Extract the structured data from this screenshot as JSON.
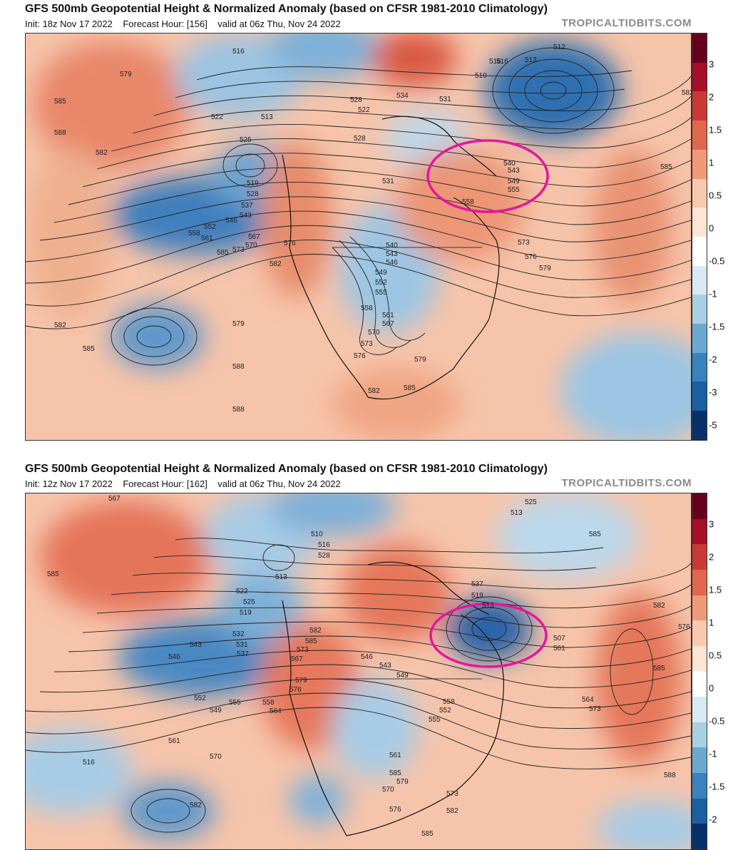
{
  "panels": [
    {
      "title": "GFS 500mb Geopotential Height & Normalized Anomaly (based on CFSR 1981-2010 Climatology)",
      "init": "Init: 18z Nov 17 2022",
      "forecast_hour": "Forecast Hour: [156]",
      "valid": "valid at 06z Thu, Nov 24 2022",
      "brand": "TROPICALTIDBITS.COM",
      "contour_labels": [
        "579",
        "585",
        "588",
        "582",
        "516",
        "513",
        "522",
        "525",
        "519",
        "528",
        "537",
        "543",
        "546",
        "552",
        "558",
        "561",
        "567",
        "570",
        "573",
        "576",
        "582",
        "585",
        "579",
        "582",
        "585",
        "588",
        "534",
        "531",
        "519",
        "516",
        "513",
        "528",
        "531",
        "540",
        "543",
        "546",
        "549",
        "552",
        "555",
        "558",
        "561",
        "567",
        "570",
        "573",
        "576",
        "579",
        "582",
        "585",
        "588",
        "540",
        "543",
        "549",
        "555",
        "558",
        "573",
        "576",
        "579",
        "585",
        "582",
        "512",
        "516",
        "522",
        "528"
      ],
      "highlight": "magenta-ellipse-over-eastern-canada"
    },
    {
      "title": "GFS 500mb Geopotential Height & Normalized Anomaly (based on CFSR 1981-2010 Climatology)",
      "init": "Init: 12z Nov 17 2022",
      "forecast_hour": "Forecast Hour: [162]",
      "valid": "valid at 06z Thu, Nov 24 2022",
      "brand": "TROPICALTIDBITS.COM",
      "contour_labels": [
        "567",
        "585",
        "522",
        "525",
        "519",
        "513",
        "510",
        "516",
        "528",
        "532",
        "531",
        "537",
        "543",
        "546",
        "549",
        "552",
        "555",
        "558",
        "564",
        "561",
        "570",
        "576",
        "579",
        "582",
        "585",
        "573",
        "567",
        "543",
        "546",
        "549",
        "537",
        "519",
        "513",
        "507",
        "561",
        "564",
        "573",
        "576",
        "585",
        "588",
        "582",
        "585",
        "525",
        "513",
        "522",
        "516",
        "582",
        "585",
        "579",
        "570",
        "561",
        "558",
        "552",
        "555",
        "576",
        "573",
        "582",
        "585"
      ],
      "highlight": "magenta-ellipse-over-eastern-canada"
    }
  ],
  "colorbar": {
    "labels_top": [
      "3",
      "2",
      "1.5",
      "1",
      "0.5",
      "0",
      "-0.5",
      "-1",
      "-1.5",
      "-2",
      "-3",
      "-5"
    ],
    "labels_bottom": [
      "3",
      "2",
      "1.5",
      "1",
      "0.5",
      "0",
      "-0.5",
      "-1",
      "-1.5",
      "-2"
    ],
    "colors": [
      "#67001f",
      "#a50f2a",
      "#c93a37",
      "#e0674f",
      "#f09a77",
      "#f9c9ad",
      "#fde5d6",
      "#ffffff",
      "#d8e9f3",
      "#a9cfe5",
      "#6ba9d1",
      "#3883bd",
      "#1a5fa0",
      "#08306b"
    ]
  },
  "colors": {
    "warm_anomaly": "#e5805f",
    "cold_anomaly": "#4f8fc4",
    "highlight": "#e6169a",
    "contour": "#222222"
  }
}
